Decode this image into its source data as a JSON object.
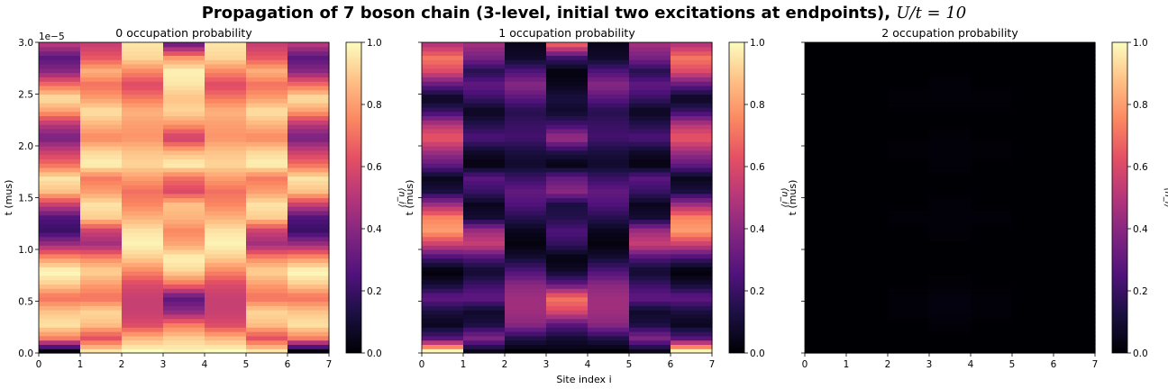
{
  "figure": {
    "title_main": "Propagation of 7 boson chain (3-level, initial two excitations at endpoints), ",
    "title_math": "U/t = 10",
    "xlabel": "Site index i",
    "ylabel": "t (mus)",
    "y_offset_label": "1e−5",
    "colorbar_label": "⟨n_i⟩",
    "colormap": "magma"
  },
  "chart_data": [
    {
      "type": "heatmap",
      "title": "0 occupation probability",
      "x_ticks": [
        "0",
        "1",
        "2",
        "3",
        "4",
        "5",
        "6",
        "7"
      ],
      "y_ticks": [
        "0.0",
        "0.5",
        "1.0",
        "1.5",
        "2.0",
        "2.5",
        "3.0"
      ],
      "cbar_ticks": [
        "0.0",
        "0.2",
        "0.4",
        "0.6",
        "0.8",
        "1.0"
      ],
      "xlim": [
        0,
        7
      ],
      "ylim": [
        0,
        3e-05
      ],
      "clim": [
        0,
        1
      ],
      "rows": 24,
      "columns": [
        [
          0.02,
          0.75,
          0.95,
          0.88,
          0.7,
          0.9,
          1.0,
          0.78,
          0.45,
          0.2,
          0.25,
          0.55,
          0.88,
          0.95,
          0.7,
          0.55,
          0.35,
          0.5,
          0.8,
          0.95,
          0.7,
          0.4,
          0.28,
          0.5
        ],
        [
          0.95,
          0.62,
          0.88,
          0.92,
          0.7,
          0.8,
          0.92,
          0.75,
          0.45,
          0.55,
          0.9,
          0.95,
          0.8,
          0.72,
          0.98,
          0.92,
          0.75,
          0.85,
          0.95,
          0.8,
          0.7,
          0.85,
          0.65,
          0.55
        ],
        [
          1.0,
          0.85,
          0.6,
          0.55,
          0.55,
          0.6,
          0.75,
          0.9,
          0.98,
          0.95,
          0.85,
          0.75,
          0.7,
          0.8,
          0.92,
          0.88,
          0.78,
          0.8,
          0.85,
          0.72,
          0.6,
          0.75,
          0.92,
          0.95
        ],
        [
          0.98,
          0.9,
          0.72,
          0.4,
          0.28,
          0.7,
          0.92,
          0.98,
          0.82,
          0.75,
          0.85,
          0.88,
          0.6,
          0.7,
          0.98,
          0.85,
          0.55,
          0.78,
          0.92,
          0.88,
          0.95,
          0.98,
          0.8,
          0.35
        ],
        [
          1.0,
          0.85,
          0.6,
          0.55,
          0.55,
          0.6,
          0.75,
          0.9,
          0.98,
          0.95,
          0.85,
          0.75,
          0.7,
          0.8,
          0.92,
          0.88,
          0.78,
          0.8,
          0.85,
          0.72,
          0.6,
          0.75,
          0.92,
          0.95
        ],
        [
          0.95,
          0.62,
          0.88,
          0.92,
          0.7,
          0.8,
          0.92,
          0.75,
          0.45,
          0.55,
          0.9,
          0.95,
          0.8,
          0.72,
          0.98,
          0.92,
          0.75,
          0.85,
          0.95,
          0.8,
          0.7,
          0.85,
          0.65,
          0.55
        ],
        [
          0.02,
          0.75,
          0.95,
          0.88,
          0.7,
          0.9,
          1.0,
          0.78,
          0.45,
          0.2,
          0.25,
          0.55,
          0.88,
          0.95,
          0.7,
          0.55,
          0.35,
          0.5,
          0.8,
          0.95,
          0.7,
          0.4,
          0.28,
          0.5
        ]
      ]
    },
    {
      "type": "heatmap",
      "title": "1 occupation probability",
      "x_ticks": [
        "0",
        "1",
        "2",
        "3",
        "4",
        "5",
        "6",
        "7"
      ],
      "y_ticks": [],
      "cbar_ticks": [
        "0.0",
        "0.2",
        "0.4",
        "0.6",
        "0.8",
        "1.0"
      ],
      "xlim": [
        0,
        7
      ],
      "ylim": [
        0,
        3e-05
      ],
      "clim": [
        0,
        1
      ],
      "rows": 24,
      "columns": [
        [
          0.98,
          0.25,
          0.05,
          0.12,
          0.3,
          0.1,
          0.0,
          0.22,
          0.55,
          0.8,
          0.75,
          0.45,
          0.12,
          0.05,
          0.3,
          0.45,
          0.65,
          0.5,
          0.2,
          0.05,
          0.3,
          0.6,
          0.72,
          0.5
        ],
        [
          0.05,
          0.38,
          0.12,
          0.08,
          0.3,
          0.2,
          0.08,
          0.25,
          0.55,
          0.45,
          0.1,
          0.05,
          0.2,
          0.28,
          0.02,
          0.08,
          0.25,
          0.15,
          0.05,
          0.2,
          0.3,
          0.15,
          0.35,
          0.45
        ],
        [
          0.0,
          0.15,
          0.4,
          0.45,
          0.45,
          0.4,
          0.25,
          0.1,
          0.02,
          0.05,
          0.15,
          0.25,
          0.3,
          0.2,
          0.08,
          0.12,
          0.22,
          0.2,
          0.15,
          0.28,
          0.4,
          0.25,
          0.08,
          0.05
        ],
        [
          0.02,
          0.1,
          0.28,
          0.6,
          0.72,
          0.3,
          0.08,
          0.02,
          0.18,
          0.25,
          0.15,
          0.12,
          0.4,
          0.3,
          0.02,
          0.15,
          0.45,
          0.22,
          0.08,
          0.12,
          0.05,
          0.02,
          0.2,
          0.65
        ],
        [
          0.0,
          0.15,
          0.4,
          0.45,
          0.45,
          0.4,
          0.25,
          0.1,
          0.02,
          0.05,
          0.15,
          0.25,
          0.3,
          0.2,
          0.08,
          0.12,
          0.22,
          0.2,
          0.15,
          0.28,
          0.4,
          0.25,
          0.08,
          0.05
        ],
        [
          0.05,
          0.38,
          0.12,
          0.08,
          0.3,
          0.2,
          0.08,
          0.25,
          0.55,
          0.45,
          0.1,
          0.05,
          0.2,
          0.28,
          0.02,
          0.08,
          0.25,
          0.15,
          0.05,
          0.2,
          0.3,
          0.15,
          0.35,
          0.45
        ],
        [
          0.98,
          0.25,
          0.05,
          0.12,
          0.3,
          0.1,
          0.0,
          0.22,
          0.55,
          0.8,
          0.75,
          0.45,
          0.12,
          0.05,
          0.3,
          0.45,
          0.65,
          0.5,
          0.2,
          0.05,
          0.3,
          0.6,
          0.72,
          0.5
        ]
      ]
    },
    {
      "type": "heatmap",
      "title": "2 occupation probability",
      "x_ticks": [
        "0",
        "1",
        "2",
        "3",
        "4",
        "5",
        "6",
        "7"
      ],
      "y_ticks": [],
      "cbar_ticks": [
        "0.0",
        "0.2",
        "0.4",
        "0.6",
        "0.8",
        "1.0"
      ],
      "xlim": [
        0,
        7
      ],
      "ylim": [
        0,
        3e-05
      ],
      "clim": [
        0,
        1
      ],
      "rows": 24,
      "columns": [
        [
          0.0,
          0.0,
          0.0,
          0.0,
          0.0,
          0.0,
          0.0,
          0.0,
          0.0,
          0.0,
          0.0,
          0.0,
          0.0,
          0.0,
          0.0,
          0.0,
          0.0,
          0.0,
          0.0,
          0.0,
          0.0,
          0.0,
          0.0,
          0.0
        ],
        [
          0.0,
          0.0,
          0.0,
          0.0,
          0.0,
          0.0,
          0.0,
          0.0,
          0.0,
          0.0,
          0.0,
          0.0,
          0.0,
          0.0,
          0.0,
          0.0,
          0.0,
          0.0,
          0.0,
          0.0,
          0.0,
          0.0,
          0.0,
          0.0
        ],
        [
          0.0,
          0.0,
          0.0,
          0.01,
          0.01,
          0.0,
          0.0,
          0.0,
          0.0,
          0.0,
          0.01,
          0.0,
          0.0,
          0.0,
          0.0,
          0.01,
          0.0,
          0.0,
          0.0,
          0.01,
          0.0,
          0.0,
          0.0,
          0.0
        ],
        [
          0.0,
          0.0,
          0.01,
          0.02,
          0.02,
          0.01,
          0.0,
          0.0,
          0.0,
          0.01,
          0.01,
          0.01,
          0.0,
          0.0,
          0.01,
          0.01,
          0.01,
          0.0,
          0.0,
          0.01,
          0.01,
          0.0,
          0.0,
          0.0
        ],
        [
          0.0,
          0.0,
          0.0,
          0.01,
          0.01,
          0.0,
          0.0,
          0.0,
          0.0,
          0.0,
          0.01,
          0.0,
          0.0,
          0.0,
          0.0,
          0.01,
          0.0,
          0.0,
          0.0,
          0.01,
          0.0,
          0.0,
          0.0,
          0.0
        ],
        [
          0.0,
          0.0,
          0.0,
          0.0,
          0.0,
          0.0,
          0.0,
          0.0,
          0.0,
          0.0,
          0.0,
          0.0,
          0.0,
          0.0,
          0.0,
          0.0,
          0.0,
          0.0,
          0.0,
          0.0,
          0.0,
          0.0,
          0.0,
          0.0
        ],
        [
          0.0,
          0.0,
          0.0,
          0.0,
          0.0,
          0.0,
          0.0,
          0.0,
          0.0,
          0.0,
          0.0,
          0.0,
          0.0,
          0.0,
          0.0,
          0.0,
          0.0,
          0.0,
          0.0,
          0.0,
          0.0,
          0.0,
          0.0,
          0.0
        ]
      ]
    }
  ]
}
